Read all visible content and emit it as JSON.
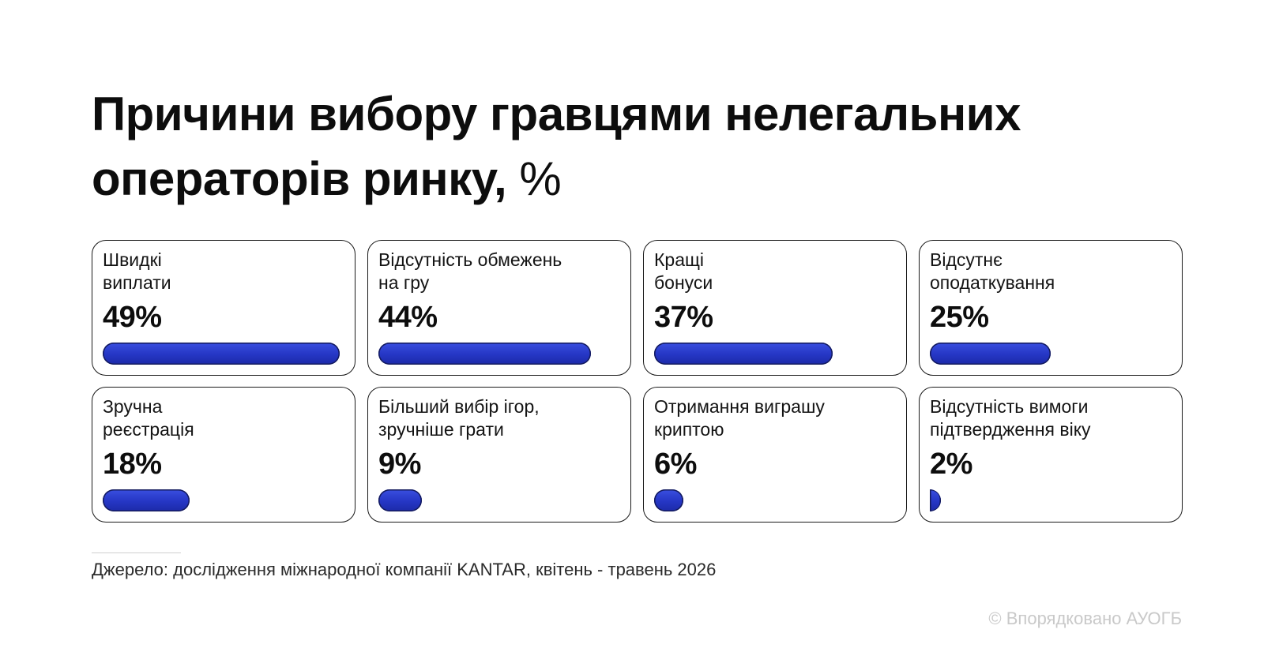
{
  "title": "Причини вибору гравцями нелегальних операторів ринку,",
  "title_unit": "%",
  "chart_data": {
    "type": "bar",
    "title": "Причини вибору гравцями нелегальних операторів ринку, %",
    "categories": [
      "Швидкі\nвиплати",
      "Відсутність обмежень\nна гру",
      "Кращі\nбонуси",
      "Відсутнє\nоподаткування",
      "Зручна\nреєстрація",
      "Більший вибір ігор,\nзручніше грати",
      "Отримання виграшу\nкриптою",
      "Відсутність вимоги\nпідтвердження віку"
    ],
    "values": [
      49,
      44,
      37,
      25,
      18,
      9,
      6,
      2
    ],
    "value_labels": [
      "49%",
      "44%",
      "37%",
      "25%",
      "18%",
      "9%",
      "6%",
      "2%"
    ],
    "ylim": [
      0,
      50
    ],
    "bar_color": "#2536c4"
  },
  "source": "Джерело: дослідження міжнародної компанії KANTAR, квітень - травень 2026",
  "credit": "© Впорядковано АУОГБ"
}
